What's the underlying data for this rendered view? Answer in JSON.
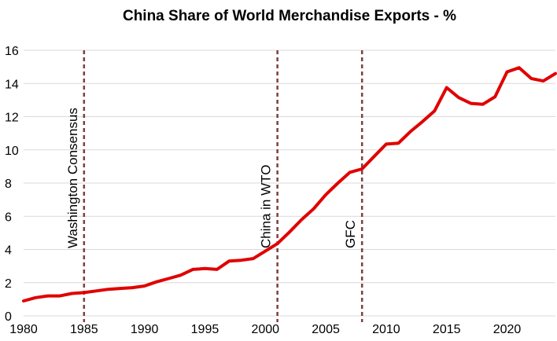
{
  "chart_data": {
    "type": "line",
    "title": "China Share of World Merchandise Exports - %",
    "xlabel": "",
    "ylabel": "",
    "xlim": [
      1980,
      2024
    ],
    "ylim": [
      0,
      16
    ],
    "y_ticks": [
      0,
      2,
      4,
      6,
      8,
      10,
      12,
      14,
      16
    ],
    "x_ticks": [
      1980,
      1985,
      1990,
      1995,
      2000,
      2005,
      2010,
      2015,
      2020
    ],
    "grid": "horizontal",
    "series": [
      {
        "name": "China share of world merchandise exports (%)",
        "color": "#e00000",
        "x": [
          1980,
          1981,
          1982,
          1983,
          1984,
          1985,
          1986,
          1987,
          1988,
          1989,
          1990,
          1991,
          1992,
          1993,
          1994,
          1995,
          1996,
          1997,
          1998,
          1999,
          2000,
          2001,
          2002,
          2003,
          2004,
          2005,
          2006,
          2007,
          2008,
          2009,
          2010,
          2011,
          2012,
          2013,
          2014,
          2015,
          2016,
          2017,
          2018,
          2019,
          2020,
          2021,
          2022,
          2023,
          2024
        ],
        "values": [
          0.9,
          1.1,
          1.2,
          1.2,
          1.35,
          1.4,
          1.5,
          1.6,
          1.65,
          1.7,
          1.8,
          2.05,
          2.25,
          2.45,
          2.8,
          2.85,
          2.8,
          3.3,
          3.35,
          3.45,
          3.9,
          4.35,
          5.05,
          5.8,
          6.45,
          7.3,
          8.0,
          8.65,
          8.85,
          9.6,
          10.35,
          10.4,
          11.1,
          11.7,
          12.35,
          13.75,
          13.15,
          12.8,
          12.75,
          13.2,
          14.7,
          14.95,
          14.3,
          14.15,
          14.6
        ]
      }
    ],
    "annotations": [
      {
        "x": 1985,
        "label": "Washington Consensus",
        "style": "dashed"
      },
      {
        "x": 2001,
        "label": "China in WTO",
        "style": "dashed"
      },
      {
        "x": 2008,
        "label": "GFC",
        "style": "dashed"
      }
    ]
  }
}
